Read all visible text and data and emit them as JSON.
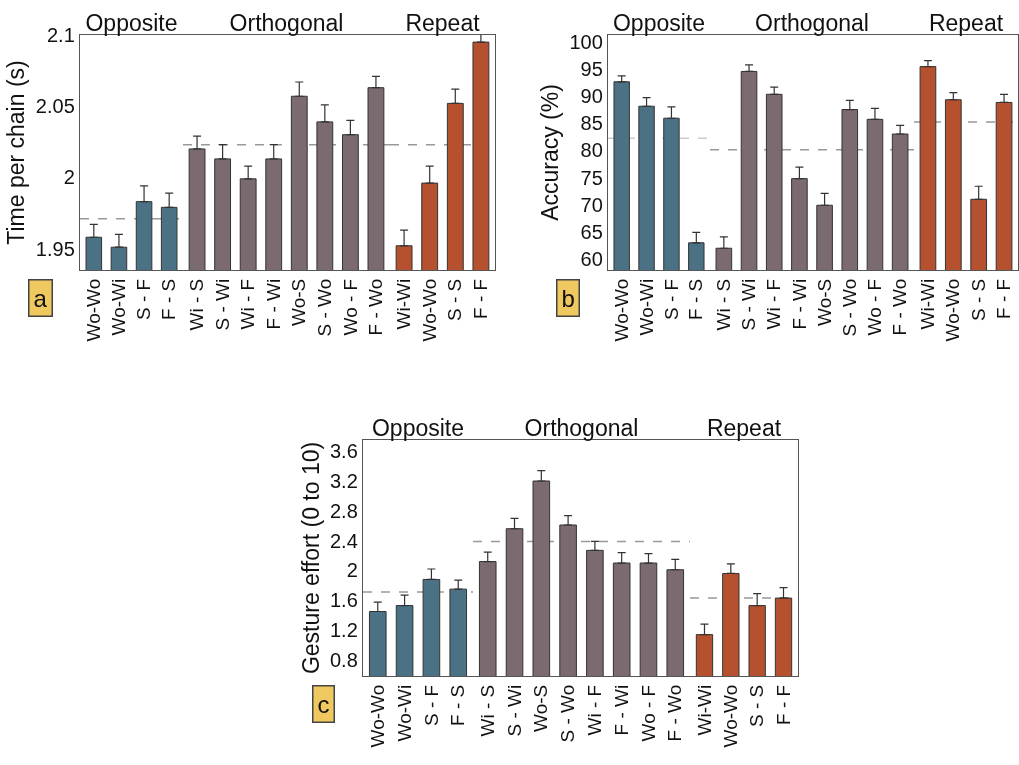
{
  "chart_data": [
    {
      "type": "bar",
      "title": "Opposite",
      "ylabel": "Time per chain (s)",
      "annotations": [
        "a"
      ],
      "categories": [
        "Wo-Wo",
        "Wo-Wi",
        "S - F",
        "F - S"
      ],
      "values": [
        1.958,
        1.951,
        1.983,
        1.979
      ],
      "errors": [
        0.009,
        0.009,
        0.011,
        0.01
      ],
      "color": "#4b7284",
      "ylim": [
        1.935,
        2.1
      ],
      "yticks": [
        1.95,
        2,
        2.05,
        2.1
      ],
      "ref_lines": [
        {
          "axis": "y",
          "value": 1.971,
          "color": "#999999",
          "line_style": "dashed"
        }
      ],
      "grid": false
    },
    {
      "type": "bar",
      "title": "Orthogonal",
      "categories": [
        "Wi - S",
        "S - Wi",
        "Wi - F",
        "F - Wi",
        "Wo-S",
        "S - Wo",
        "Wo - F",
        "F - Wo"
      ],
      "values": [
        2.02,
        2.013,
        1.999,
        2.013,
        2.057,
        2.039,
        2.03,
        2.063
      ],
      "errors": [
        0.009,
        0.01,
        0.009,
        0.01,
        0.01,
        0.012,
        0.01,
        0.008
      ],
      "color": "#7b6a70",
      "ylim": [
        1.935,
        2.1
      ],
      "yticks": [
        1.95,
        2,
        2.05,
        2.1
      ],
      "tick_labels": "x",
      "ref_lines": [
        {
          "axis": "y",
          "value": 2.023,
          "color": "#999999",
          "line_style": "dashed"
        }
      ],
      "grid": false
    },
    {
      "type": "bar",
      "title": "Repeat",
      "categories": [
        "Wi-Wi",
        "Wo-Wo",
        "S - S",
        "F - F"
      ],
      "values": [
        1.952,
        1.996,
        2.052,
        2.095
      ],
      "errors": [
        0.011,
        0.012,
        0.01,
        0.006
      ],
      "color": "#b5512f",
      "ylim": [
        1.935,
        2.1
      ],
      "yticks": [
        1.95,
        2,
        2.05,
        2.1
      ],
      "tick_labels": "x",
      "ref_lines": [
        {
          "axis": "y",
          "value": 2.023,
          "color": "#999999",
          "line_style": "dashed"
        }
      ],
      "grid": false
    },
    {
      "type": "bar",
      "title": "Opposite",
      "ylabel": "Accuracy (%)",
      "annotations": [
        "b"
      ],
      "categories": [
        "Wo-Wo",
        "Wo-Wi",
        "S - F",
        "F - S"
      ],
      "values": [
        92.6,
        88.1,
        85.9,
        63.0
      ],
      "errors": [
        1.1,
        1.6,
        2.1,
        1.9
      ],
      "color": "#4b7284",
      "ylim": [
        58,
        101.2
      ],
      "yticks": [
        60,
        65,
        70,
        75,
        80,
        85,
        90,
        95,
        100
      ],
      "ref_lines": [
        {
          "axis": "y",
          "value": 82.2,
          "color": "#cccccc",
          "line_style": "dashed"
        }
      ],
      "grid": false
    },
    {
      "type": "bar",
      "title": "Orthogonal",
      "categories": [
        "Wi - S",
        "S - Wi",
        "Wi - F",
        "F - Wi",
        "Wo-S",
        "S - Wo",
        "Wo - F",
        "F - Wo"
      ],
      "values": [
        62.0,
        94.5,
        90.3,
        74.8,
        69.9,
        87.5,
        85.7,
        83.0
      ],
      "errors": [
        2.1,
        1.2,
        1.3,
        2.1,
        2.2,
        1.7,
        2.0,
        1.6
      ],
      "color": "#7b6a70",
      "ylim": [
        58,
        101.2
      ],
      "yticks": [
        60,
        65,
        70,
        75,
        80,
        85,
        90,
        95,
        100
      ],
      "tick_labels": "x",
      "ref_lines": [
        {
          "axis": "y",
          "value": 80.1,
          "color": "#999999",
          "line_style": "dashed"
        }
      ],
      "grid": false
    },
    {
      "type": "bar",
      "title": "Repeat",
      "categories": [
        "Wi-Wi",
        "Wo-Wo",
        "S - S",
        "F - F"
      ],
      "values": [
        95.4,
        89.3,
        71.0,
        88.8
      ],
      "errors": [
        1.1,
        1.3,
        2.4,
        1.5
      ],
      "color": "#b5512f",
      "ylim": [
        58,
        101.2
      ],
      "yticks": [
        60,
        65,
        70,
        75,
        80,
        85,
        90,
        95,
        100
      ],
      "tick_labels": "x",
      "ref_lines": [
        {
          "axis": "y",
          "value": 85.2,
          "color": "#999999",
          "line_style": "dashed"
        }
      ],
      "grid": false
    },
    {
      "type": "bar",
      "title": "Opposite",
      "ylabel": "Gesture effort (0 to 10)",
      "annotations": [
        "c"
      ],
      "categories": [
        "Wo-Wo",
        "Wo-Wi",
        "S - F",
        "F - S"
      ],
      "values": [
        1.45,
        1.53,
        1.88,
        1.75
      ],
      "errors": [
        0.125,
        0.14,
        0.14,
        0.12
      ],
      "color": "#4b7284",
      "ylim": [
        0.585,
        3.75
      ],
      "yticks": [
        0.8,
        1.2,
        1.6,
        2,
        2.4,
        2.8,
        3.2,
        3.6
      ],
      "ref_lines": [
        {
          "axis": "y",
          "value": 1.71,
          "color": "#999999",
          "line_style": "dashed"
        }
      ],
      "grid": false
    },
    {
      "type": "bar",
      "title": "Orthogonal",
      "categories": [
        "Wi - S",
        "S - Wi",
        "Wo-S",
        "S - Wo",
        "Wi - F",
        "F - Wi",
        "Wo - F",
        "F - Wo"
      ],
      "values": [
        2.12,
        2.56,
        3.2,
        2.61,
        2.27,
        2.1,
        2.1,
        2.01
      ],
      "errors": [
        0.125,
        0.14,
        0.14,
        0.125,
        0.12,
        0.14,
        0.125,
        0.14
      ],
      "color": "#7b6a70",
      "ylim": [
        0.585,
        3.75
      ],
      "yticks": [
        0.8,
        1.2,
        1.6,
        2,
        2.4,
        2.8,
        3.2,
        3.6
      ],
      "tick_labels": "x",
      "ref_lines": [
        {
          "axis": "y",
          "value": 2.39,
          "color": "#999999",
          "line_style": "dashed"
        }
      ],
      "grid": false
    },
    {
      "type": "bar",
      "title": "Repeat",
      "categories": [
        "Wi-Wi",
        "Wo-Wo",
        "S - S",
        "F - F"
      ],
      "values": [
        1.14,
        1.96,
        1.53,
        1.63
      ],
      "errors": [
        0.14,
        0.13,
        0.16,
        0.14
      ],
      "color": "#b5512f",
      "ylim": [
        0.585,
        3.75
      ],
      "yticks": [
        0.8,
        1.2,
        1.6,
        2,
        2.4,
        2.8,
        3.2,
        3.6
      ],
      "tick_labels": "x",
      "ref_lines": [
        {
          "axis": "y",
          "value": 1.63,
          "color": "#999999",
          "line_style": "dashed"
        }
      ],
      "grid": false
    }
  ]
}
